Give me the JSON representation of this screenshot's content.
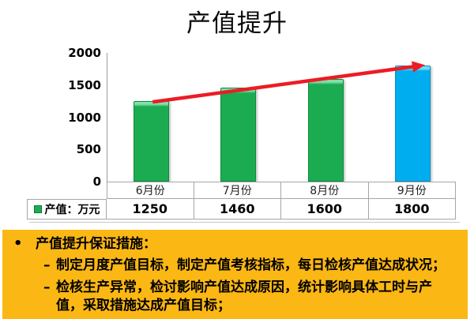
{
  "page": {
    "title": "产值提升"
  },
  "chart_data": {
    "type": "bar",
    "title": "产值提升",
    "categories": [
      "6月份",
      "7月份",
      "8月份",
      "9月份"
    ],
    "series": [
      {
        "name": "产值：万元",
        "values": [
          1250,
          1460,
          1600,
          1800
        ]
      }
    ],
    "ylim": [
      0,
      2000
    ],
    "yticks": [
      0,
      500,
      1000,
      1500,
      2000
    ],
    "xlabel": "",
    "ylabel": "",
    "grid": false,
    "legend_position": "table-left",
    "bar_colors": [
      "#1bac51",
      "#1bac51",
      "#1bac51",
      "#00aeef"
    ],
    "bar_colors_light": [
      "#82e0ac",
      "#82e0ac",
      "#82e0ac",
      "#72dcf8"
    ],
    "bar_colors_dark": [
      "#0d8a3d",
      "#0d8a3d",
      "#0d8a3d",
      "#0a8cc0"
    ],
    "trend_arrow": {
      "color": "#ec1c24",
      "from": "6月份",
      "to": "9月份"
    }
  },
  "table": {
    "legend_label": "产值：万元",
    "legend_color": "#1bac51",
    "columns": [
      "6月份",
      "7月份",
      "8月份",
      "9月份"
    ],
    "values": [
      "1250",
      "1460",
      "1600",
      "1800"
    ]
  },
  "notes": {
    "background": "#fbb714",
    "bullet": "•",
    "dash": "–",
    "heading": "产值提升保证措施：",
    "items": [
      "制定月度产值目标，制定产值考核指标，每日检核产值达成状况；",
      "检核生产异常，检讨影响产值达成原因，统计影响具体工时与产值，采取措施达成产值目标；"
    ]
  }
}
